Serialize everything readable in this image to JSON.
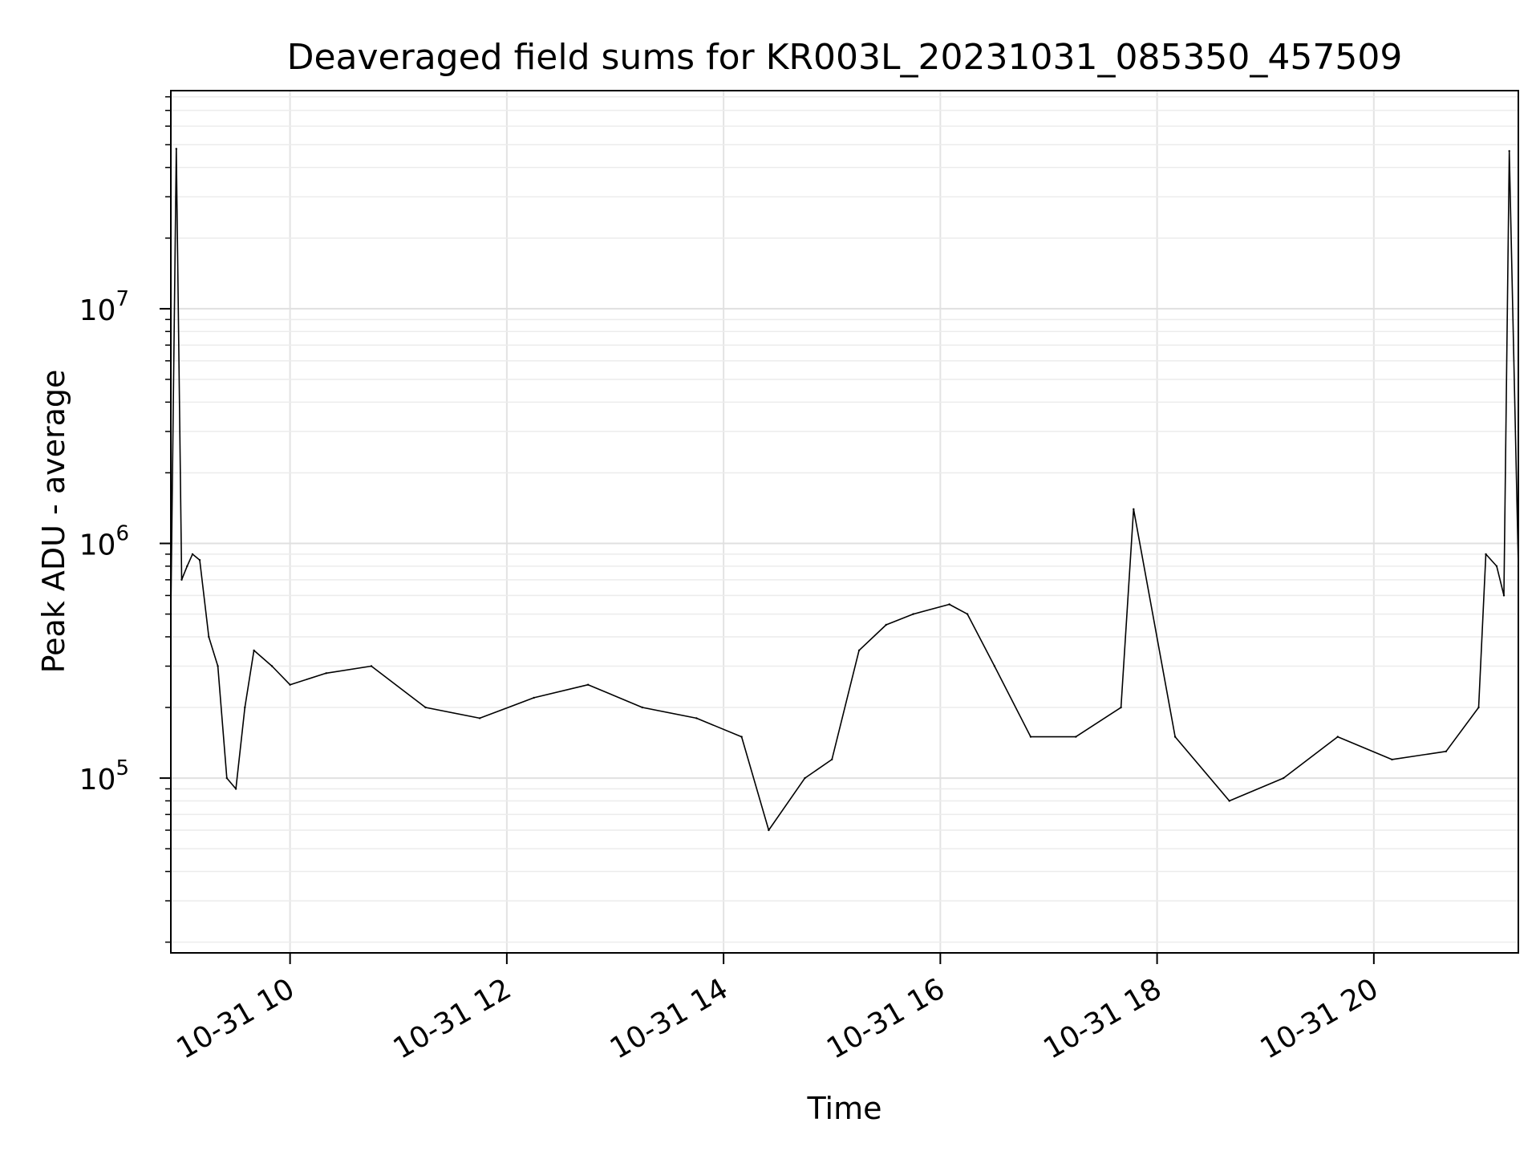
{
  "chart_data": {
    "type": "line",
    "title": "Deaveraged field sums for KR003L_20231031_085350_457509",
    "xlabel": "Time",
    "ylabel": "Peak ADU - average",
    "x_axis": {
      "kind": "datetime",
      "range": [
        "2023-10-31 08:54",
        "2023-10-31 21:20"
      ],
      "tick_labels": [
        "10-31 10",
        "10-31 12",
        "10-31 14",
        "10-31 16",
        "10-31 18",
        "10-31 20"
      ],
      "tick_values": [
        "2023-10-31 10:00",
        "2023-10-31 12:00",
        "2023-10-31 14:00",
        "2023-10-31 16:00",
        "2023-10-31 18:00",
        "2023-10-31 20:00"
      ],
      "tick_label_rotation_deg": 30
    },
    "y_axis": {
      "scale": "log",
      "range": [
        18000,
        85000000
      ],
      "tick_labels": [
        {
          "base": "10",
          "exp": "5",
          "value": 100000
        },
        {
          "base": "10",
          "exp": "6",
          "value": 1000000
        },
        {
          "base": "10",
          "exp": "7",
          "value": 10000000
        }
      ]
    },
    "grid": true,
    "legend": "none",
    "line_color": "#000000",
    "series": [
      {
        "x": [
          "2023-10-31 08:54",
          "2023-10-31 08:57",
          "2023-10-31 09:00",
          "2023-10-31 09:03",
          "2023-10-31 09:06",
          "2023-10-31 09:10",
          "2023-10-31 09:15",
          "2023-10-31 09:20",
          "2023-10-31 09:25",
          "2023-10-31 09:30",
          "2023-10-31 09:35",
          "2023-10-31 09:40",
          "2023-10-31 09:50",
          "2023-10-31 10:00",
          "2023-10-31 10:20",
          "2023-10-31 10:45",
          "2023-10-31 11:15",
          "2023-10-31 11:45",
          "2023-10-31 12:15",
          "2023-10-31 12:45",
          "2023-10-31 13:15",
          "2023-10-31 13:45",
          "2023-10-31 14:10",
          "2023-10-31 14:25",
          "2023-10-31 14:45",
          "2023-10-31 15:00",
          "2023-10-31 15:15",
          "2023-10-31 15:30",
          "2023-10-31 15:45",
          "2023-10-31 16:05",
          "2023-10-31 16:15",
          "2023-10-31 16:30",
          "2023-10-31 16:50",
          "2023-10-31 17:15",
          "2023-10-31 17:40",
          "2023-10-31 17:47",
          "2023-10-31 18:10",
          "2023-10-31 18:40",
          "2023-10-31 19:10",
          "2023-10-31 19:40",
          "2023-10-31 20:10",
          "2023-10-31 20:40",
          "2023-10-31 20:58",
          "2023-10-31 21:02",
          "2023-10-31 21:08",
          "2023-10-31 21:12",
          "2023-10-31 21:15",
          "2023-10-31 21:20"
        ],
        "y": [
          500000,
          48000000,
          700000,
          800000,
          900000,
          850000,
          400000,
          300000,
          100000,
          90000,
          200000,
          350000,
          300000,
          250000,
          280000,
          300000,
          200000,
          180000,
          220000,
          250000,
          200000,
          180000,
          150000,
          60000,
          100000,
          120000,
          350000,
          450000,
          500000,
          550000,
          500000,
          300000,
          150000,
          150000,
          200000,
          1400000,
          150000,
          80000,
          100000,
          150000,
          120000,
          130000,
          200000,
          900000,
          800000,
          600000,
          47000000,
          800000
        ]
      }
    ]
  }
}
